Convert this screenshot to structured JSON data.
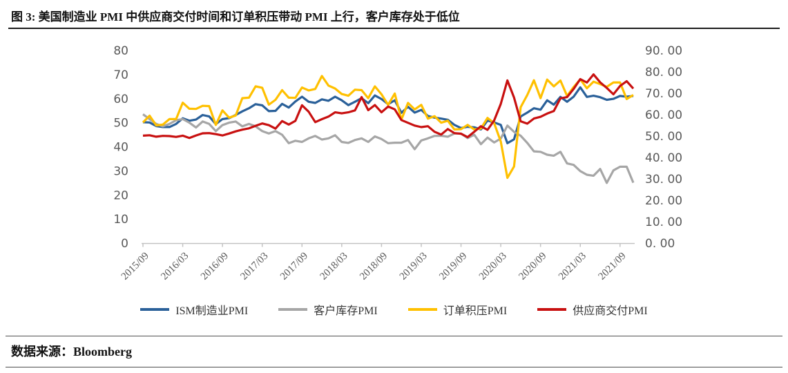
{
  "title": "图 3: 美国制造业 PMI 中供应商交付时间和订单积压带动 PMI 上行，客户库存处于低位",
  "source": "数据来源：Bloomberg",
  "chart_data": {
    "type": "line",
    "grid": false,
    "legend_position": "bottom",
    "x": [
      "2015/09",
      "2015/10",
      "2015/11",
      "2015/12",
      "2016/01",
      "2016/02",
      "2016/03",
      "2016/04",
      "2016/05",
      "2016/06",
      "2016/07",
      "2016/08",
      "2016/09",
      "2016/10",
      "2016/11",
      "2016/12",
      "2017/01",
      "2017/02",
      "2017/03",
      "2017/04",
      "2017/05",
      "2017/06",
      "2017/07",
      "2017/08",
      "2017/09",
      "2017/10",
      "2017/11",
      "2017/12",
      "2018/01",
      "2018/02",
      "2018/03",
      "2018/04",
      "2018/05",
      "2018/06",
      "2018/07",
      "2018/08",
      "2018/09",
      "2018/10",
      "2018/11",
      "2018/12",
      "2019/01",
      "2019/02",
      "2019/03",
      "2019/04",
      "2019/05",
      "2019/06",
      "2019/07",
      "2019/08",
      "2019/09",
      "2019/10",
      "2019/11",
      "2019/12",
      "2020/01",
      "2020/02",
      "2020/03",
      "2020/04",
      "2020/05",
      "2020/06",
      "2020/07",
      "2020/08",
      "2020/09",
      "2020/10",
      "2020/11",
      "2020/12",
      "2021/01",
      "2021/02",
      "2021/03",
      "2021/04",
      "2021/05",
      "2021/06",
      "2021/07",
      "2021/08",
      "2021/09",
      "2021/10",
      "2021/11"
    ],
    "x_tick_labels": [
      "2015/09",
      "2016/03",
      "2016/09",
      "2017/03",
      "2017/09",
      "2018/03",
      "2018/09",
      "2019/03",
      "2019/09",
      "2020/03",
      "2020/09",
      "2021/03",
      "2021/09"
    ],
    "left_axis": {
      "min": 0,
      "max": 80,
      "step": 10,
      "ticks": [
        "0",
        "10",
        "20",
        "30",
        "40",
        "50",
        "60",
        "70",
        "80"
      ]
    },
    "right_axis": {
      "min": 0,
      "max": 90,
      "step": 10,
      "ticks": [
        "0. 00",
        "10. 00",
        "20. 00",
        "30. 00",
        "40. 00",
        "50. 00",
        "60. 00",
        "70. 00",
        "80. 00",
        "90. 00"
      ]
    },
    "series": [
      {
        "name": "ISM制造业PMI",
        "color": "#2A6099",
        "axis": "left",
        "values": [
          50.2,
          50.1,
          48.6,
          48.2,
          48.2,
          49.5,
          51.8,
          50.8,
          51.3,
          53.2,
          52.6,
          49.4,
          51.5,
          51.9,
          53.2,
          54.7,
          56.0,
          57.7,
          57.2,
          54.8,
          54.9,
          57.8,
          56.3,
          58.8,
          60.8,
          58.7,
          58.2,
          59.7,
          59.1,
          60.8,
          59.3,
          57.3,
          58.7,
          60.2,
          58.1,
          61.3,
          59.8,
          57.7,
          59.3,
          54.1,
          56.6,
          54.2,
          55.3,
          52.8,
          52.1,
          51.7,
          51.2,
          49.1,
          47.8,
          48.3,
          48.1,
          47.2,
          50.9,
          50.1,
          49.1,
          41.5,
          43.1,
          52.6,
          54.2,
          56.0,
          55.4,
          59.3,
          57.5,
          60.7,
          58.7,
          60.8,
          64.7,
          60.7,
          61.2,
          60.6,
          59.5,
          59.9,
          61.1,
          60.8,
          61.1
        ]
      },
      {
        "name": "客户库存PMI",
        "color": "#A6A6A6",
        "axis": "left",
        "values": [
          53.5,
          51.5,
          49.5,
          48.5,
          49.5,
          51.0,
          51.5,
          50.0,
          48.0,
          50.5,
          49.5,
          46.5,
          49.0,
          50.0,
          50.5,
          48.5,
          49.5,
          48.5,
          46.5,
          45.5,
          46.5,
          45.0,
          41.5,
          42.5,
          42.0,
          43.5,
          44.5,
          43.0,
          43.5,
          44.8,
          42.0,
          41.6,
          42.8,
          43.5,
          42.0,
          44.3,
          43.2,
          41.5,
          41.7,
          41.7,
          42.8,
          39.0,
          42.6,
          43.5,
          44.5,
          44.6,
          44.2,
          45.5,
          45.5,
          43.6,
          45.0,
          41.1,
          43.8,
          41.8,
          43.4,
          48.8,
          46.2,
          44.6,
          41.6,
          38.1,
          37.9,
          36.7,
          36.3,
          37.9,
          33.1,
          32.5,
          29.9,
          28.4,
          28.0,
          30.8,
          25.0,
          30.2,
          31.7,
          31.7,
          25.1
        ]
      },
      {
        "name": "订单积压PMI",
        "color": "#FFC000",
        "axis": "left",
        "values": [
          50.1,
          52.9,
          48.9,
          49.2,
          51.5,
          51.5,
          58.3,
          55.8,
          55.7,
          57.0,
          56.9,
          49.1,
          55.1,
          52.1,
          53.0,
          60.2,
          60.4,
          65.1,
          64.5,
          57.5,
          59.5,
          63.5,
          60.4,
          60.3,
          64.6,
          63.4,
          64.0,
          69.4,
          65.4,
          64.2,
          61.9,
          61.2,
          63.7,
          63.5,
          60.2,
          65.1,
          61.8,
          57.4,
          62.1,
          51.3,
          58.2,
          55.5,
          57.4,
          51.7,
          52.7,
          50.0,
          50.8,
          47.2,
          47.3,
          49.1,
          47.2,
          47.6,
          52.0,
          49.8,
          42.2,
          27.1,
          31.8,
          56.4,
          61.5,
          67.6,
          60.2,
          67.9,
          65.1,
          67.5,
          61.1,
          64.8,
          68.0,
          64.3,
          67.0,
          66.0,
          64.9,
          66.7,
          66.7,
          59.8,
          61.5
        ]
      },
      {
        "name": "供应商交付PMI",
        "color": "#C81010",
        "axis": "right",
        "values": [
          50.2,
          50.4,
          49.7,
          50.1,
          50.0,
          49.6,
          50.2,
          49.1,
          50.3,
          51.3,
          51.4,
          50.9,
          50.3,
          51.2,
          52.2,
          53.0,
          53.6,
          54.8,
          55.9,
          55.1,
          53.5,
          57.0,
          55.4,
          57.1,
          64.4,
          61.4,
          56.5,
          57.9,
          59.1,
          61.1,
          60.6,
          61.1,
          62.0,
          68.2,
          62.1,
          64.5,
          61.1,
          63.8,
          62.5,
          57.5,
          56.2,
          54.9,
          54.2,
          54.6,
          52.0,
          50.7,
          53.3,
          51.4,
          51.1,
          49.5,
          52.0,
          54.6,
          52.9,
          57.3,
          65.0,
          76.0,
          68.0,
          56.9,
          55.8,
          58.2,
          59.0,
          60.5,
          61.7,
          67.6,
          68.2,
          72.0,
          76.6,
          75.0,
          78.8,
          75.1,
          72.5,
          69.5,
          73.4,
          75.6,
          72.2
        ]
      }
    ]
  }
}
